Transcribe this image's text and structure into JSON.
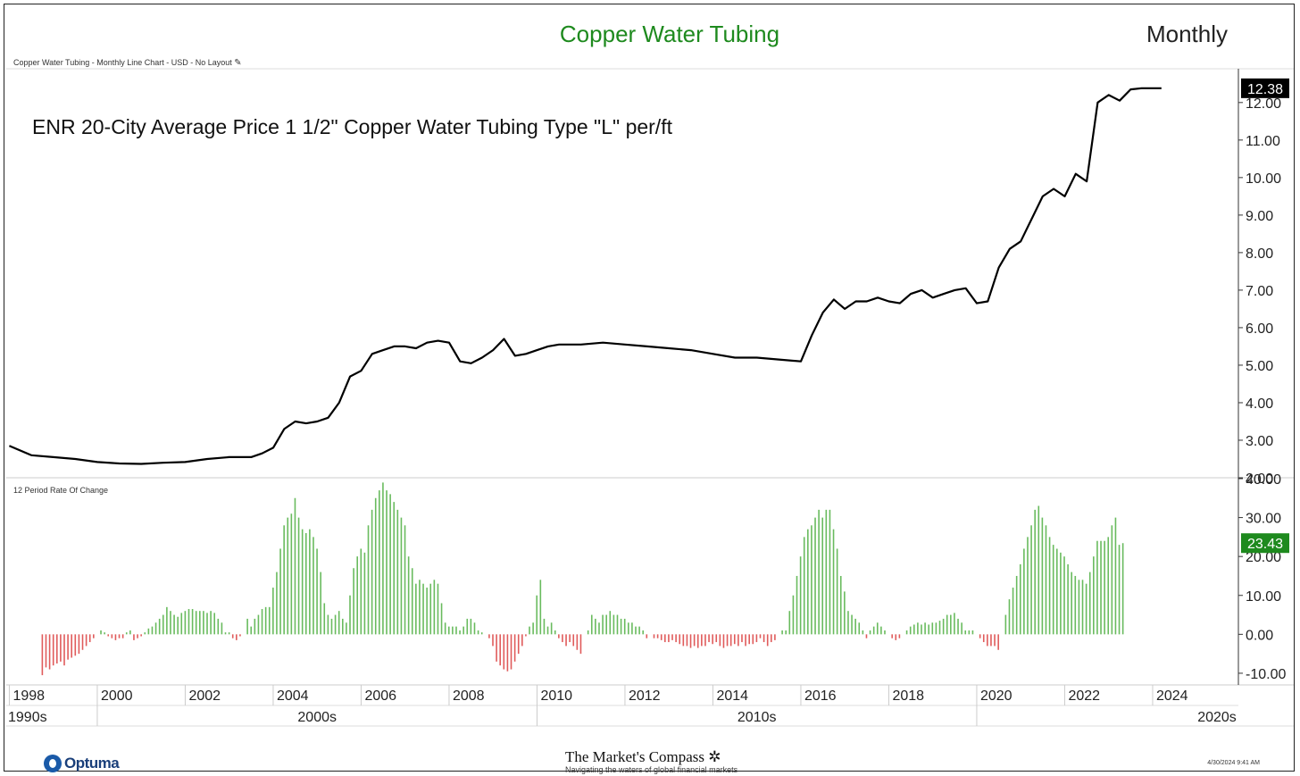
{
  "header": {
    "title": "Copper Water Tubing",
    "period": "Monthly",
    "subtitle": "Copper Water Tubing - Monthly Line Chart - USD - No Layout"
  },
  "footer": {
    "logo_text": "Optuma",
    "brand_title": "The Market's Compass",
    "brand_tagline": "Navigating the waters of global financial markets",
    "timestamp": "4/30/2024 9:41 AM"
  },
  "colors": {
    "title_green": "#1e8a1e",
    "bar_up": "#69bb5e",
    "bar_down": "#e05b5b",
    "line": "#000000",
    "badge_price": "#000000",
    "badge_roc": "#1e8a1e"
  },
  "chart_data": [
    {
      "type": "line",
      "title": "ENR 20-City Average Price 1 1/2\" Copper Water Tubing Type \"L\" per/ft",
      "y_ticks": [
        "2.00",
        "3.00",
        "4.00",
        "5.00",
        "6.00",
        "7.00",
        "8.00",
        "9.00",
        "10.00",
        "11.00",
        "12.00"
      ],
      "ylim": [
        2.0,
        12.9
      ],
      "last_value_label": "12.38",
      "last_value": 12.38,
      "x": [
        1998.0,
        1998.5,
        1999.0,
        1999.5,
        2000.0,
        2000.5,
        2001.0,
        2001.5,
        2002.0,
        2002.5,
        2003.0,
        2003.5,
        2003.75,
        2004.0,
        2004.25,
        2004.5,
        2004.75,
        2005.0,
        2005.25,
        2005.5,
        2005.75,
        2006.0,
        2006.25,
        2006.5,
        2006.75,
        2007.0,
        2007.25,
        2007.5,
        2007.75,
        2008.0,
        2008.25,
        2008.5,
        2008.75,
        2009.0,
        2009.25,
        2009.5,
        2009.75,
        2010.0,
        2010.25,
        2010.5,
        2010.75,
        2011.0,
        2011.5,
        2012.0,
        2012.5,
        2013.0,
        2013.5,
        2014.0,
        2014.5,
        2015.0,
        2015.5,
        2016.0,
        2016.25,
        2016.5,
        2016.75,
        2017.0,
        2017.25,
        2017.5,
        2017.75,
        2018.0,
        2018.25,
        2018.5,
        2018.75,
        2019.0,
        2019.25,
        2019.5,
        2019.75,
        2020.0,
        2020.25,
        2020.5,
        2020.75,
        2021.0,
        2021.25,
        2021.5,
        2021.75,
        2022.0,
        2022.25,
        2022.5,
        2022.75,
        2023.0,
        2023.25,
        2023.5,
        2023.75,
        2024.0,
        2024.2
      ],
      "y": [
        2.85,
        2.6,
        2.55,
        2.5,
        2.42,
        2.38,
        2.37,
        2.4,
        2.42,
        2.5,
        2.55,
        2.55,
        2.65,
        2.8,
        3.3,
        3.5,
        3.45,
        3.5,
        3.6,
        4.0,
        4.7,
        4.85,
        5.3,
        5.4,
        5.5,
        5.5,
        5.45,
        5.6,
        5.65,
        5.6,
        5.1,
        5.05,
        5.2,
        5.4,
        5.7,
        5.25,
        5.3,
        5.4,
        5.5,
        5.55,
        5.55,
        5.55,
        5.6,
        5.55,
        5.5,
        5.45,
        5.4,
        5.3,
        5.2,
        5.2,
        5.15,
        5.1,
        5.8,
        6.4,
        6.75,
        6.5,
        6.7,
        6.7,
        6.8,
        6.7,
        6.65,
        6.9,
        7.0,
        6.8,
        6.9,
        7.0,
        7.05,
        6.65,
        6.7,
        7.6,
        8.1,
        8.3,
        8.9,
        9.5,
        9.7,
        9.5,
        10.1,
        9.9,
        12.0,
        12.2,
        12.05,
        12.35,
        12.38,
        12.38,
        12.38
      ]
    },
    {
      "type": "bar",
      "title": "12 Period Rate Of Change",
      "y_ticks": [
        "-10.00",
        "0.00",
        "10.00",
        "20.00",
        "30.00",
        "40.00"
      ],
      "ylim": [
        -13,
        40
      ],
      "last_value_label": "23.43",
      "last_value": 23.43,
      "x_start": 1998.75,
      "x_step": 0.0833,
      "values": [
        -10.5,
        -8.5,
        -9,
        -8,
        -7.5,
        -7,
        -8,
        -6.5,
        -6,
        -5.5,
        -5,
        -4,
        -3,
        -2,
        -1,
        0,
        1,
        0.5,
        -0.5,
        -1,
        -1.5,
        -1,
        -1,
        0.5,
        1,
        -1.5,
        -1,
        -0.5,
        0.5,
        1.5,
        2,
        3,
        4,
        5,
        7,
        6,
        5,
        4.5,
        5.5,
        6,
        6.5,
        6.5,
        6,
        6,
        6,
        5.5,
        6,
        5.5,
        4,
        3,
        0.5,
        0.5,
        -1,
        -1.5,
        -0.5,
        0,
        4,
        2,
        4,
        5,
        6.5,
        7,
        7,
        12,
        16,
        22,
        28,
        30,
        31,
        35,
        30,
        27,
        26,
        27,
        25,
        22,
        16,
        8,
        5,
        4,
        5,
        6,
        4,
        3,
        10,
        17,
        20,
        22,
        21,
        28,
        32,
        35,
        37,
        39,
        37,
        36,
        34,
        32,
        30,
        28,
        20,
        17,
        13,
        14,
        13,
        12,
        13,
        14,
        13,
        8,
        3,
        2,
        2,
        2,
        1,
        2,
        4,
        4,
        3,
        1,
        0.5,
        0,
        -1,
        -3,
        -7,
        -8,
        -9,
        -9.5,
        -9,
        -7,
        -5,
        -3,
        -0.5,
        2,
        3,
        10,
        14,
        4,
        2,
        3,
        1,
        -1,
        -2,
        -3,
        -2,
        -3,
        -4,
        -5,
        0,
        1,
        5,
        4,
        3,
        5,
        5,
        6,
        5,
        5,
        4,
        4,
        3,
        3,
        2,
        2,
        1,
        -1,
        0,
        -1,
        -1,
        -1.5,
        -2,
        -2,
        -1.5,
        -2,
        -2.5,
        -3,
        -3,
        -3.5,
        -3,
        -3.5,
        -3,
        -3,
        -2,
        -2.5,
        -2,
        -3,
        -3.5,
        -3,
        -3,
        -2.5,
        -3,
        -2,
        -3,
        -2.5,
        -2.5,
        -2,
        -1,
        -2,
        -3,
        -2,
        -1.5,
        0,
        1,
        1,
        6,
        10,
        15,
        20,
        25,
        27,
        28,
        30,
        32,
        30,
        32,
        32,
        27,
        22,
        15,
        11,
        6,
        5,
        4,
        3,
        1,
        -1,
        1,
        2,
        3,
        2,
        1,
        0,
        -1,
        -1.5,
        -1,
        0,
        1,
        2,
        2.5,
        3,
        2.5,
        3,
        2.5,
        3,
        3,
        3.5,
        4,
        5,
        5,
        5.5,
        4,
        3,
        1,
        1,
        1,
        0,
        -1,
        -2,
        -3,
        -3,
        -3,
        -4,
        0,
        5,
        9,
        12,
        15,
        18,
        22,
        25,
        28,
        32,
        33,
        30,
        28,
        25,
        23,
        22,
        21,
        20,
        18,
        16,
        15,
        14,
        14,
        13,
        16,
        20,
        24,
        24,
        24,
        25,
        28,
        30,
        23,
        23.43
      ]
    }
  ],
  "x_axis": {
    "year_labels": [
      "1998",
      "2000",
      "2002",
      "2004",
      "2006",
      "2008",
      "2010",
      "2012",
      "2014",
      "2016",
      "2018",
      "2020",
      "2022",
      "2024"
    ],
    "decade_labels": [
      "1990s",
      "2000s",
      "2010s",
      "2020s"
    ]
  }
}
